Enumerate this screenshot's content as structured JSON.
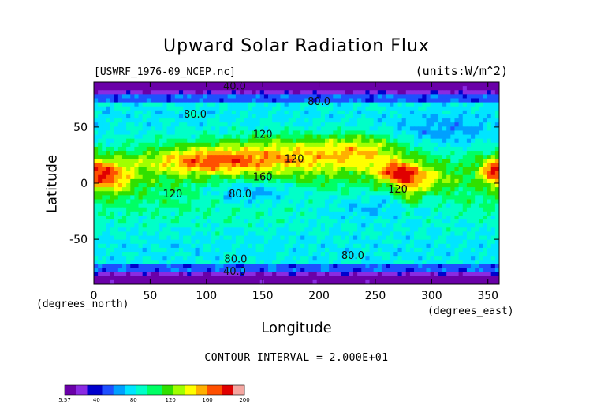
{
  "chart_data": {
    "type": "heatmap",
    "title": "Upward Solar Radiation Flux",
    "file_label": "[USWRF_1976-09_NCEP.nc]",
    "units_label": "(units:W/m^2)",
    "xlabel": "Longitude",
    "ylabel": "Latitude",
    "x_unit_label": "(degrees_north)",
    "y_unit_label": "(degrees_east)",
    "contour_interval_label": "CONTOUR INTERVAL = 2.000E+01",
    "xlim": [
      0,
      360
    ],
    "ylim": [
      -90,
      90
    ],
    "x_ticks": [
      0,
      50,
      100,
      150,
      200,
      250,
      300,
      350
    ],
    "y_ticks": [
      50,
      0,
      -50
    ],
    "colorbar_labels": [
      "5.57",
      "40",
      "80",
      "120",
      "160",
      "200"
    ],
    "colorbar_range": [
      5.57,
      200
    ],
    "colors": [
      "#6a00a8",
      "#8a2be2",
      "#0000cd",
      "#1e50ff",
      "#00a0ff",
      "#00e5ff",
      "#00ffc8",
      "#00ff64",
      "#30e000",
      "#a0ff00",
      "#ffff00",
      "#ffb000",
      "#ff5000",
      "#e00000",
      "#f4a6a0"
    ],
    "contour_labels": [
      {
        "text": "40.0",
        "lon": 125,
        "lat": 87
      },
      {
        "text": "80.0",
        "lon": 200,
        "lat": 73
      },
      {
        "text": "80.0",
        "lon": 90,
        "lat": 62
      },
      {
        "text": "120",
        "lon": 150,
        "lat": 44
      },
      {
        "text": "120",
        "lon": 178,
        "lat": 22
      },
      {
        "text": "160",
        "lon": 150,
        "lat": 6
      },
      {
        "text": "120",
        "lon": 70,
        "lat": -9
      },
      {
        "text": "80.0",
        "lon": 130,
        "lat": -9
      },
      {
        "text": "120",
        "lon": 270,
        "lat": -5
      },
      {
        "text": "80.0",
        "lon": 230,
        "lat": -64
      },
      {
        "text": "80.0",
        "lon": 126,
        "lat": -67
      },
      {
        "text": "40.0",
        "lon": 125,
        "lat": -78
      }
    ]
  }
}
